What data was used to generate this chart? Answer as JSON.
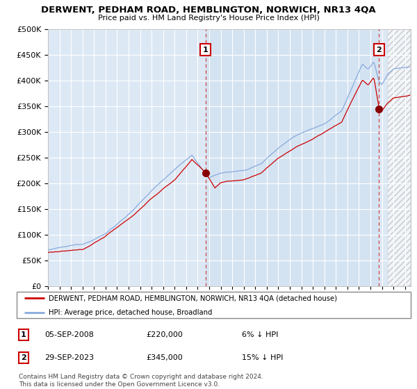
{
  "title": "DERWENT, PEDHAM ROAD, HEMBLINGTON, NORWICH, NR13 4QA",
  "subtitle": "Price paid vs. HM Land Registry's House Price Index (HPI)",
  "ylim": [
    0,
    500000
  ],
  "yticks": [
    0,
    50000,
    100000,
    150000,
    200000,
    250000,
    300000,
    350000,
    400000,
    450000,
    500000
  ],
  "xlim_start": 1995.0,
  "xlim_end": 2026.5,
  "sale1_date": 2008.68,
  "sale1_price": 220000,
  "sale1_label": "1",
  "sale2_date": 2023.75,
  "sale2_price": 345000,
  "sale2_label": "2",
  "line_color_property": "#cc0000",
  "line_color_hpi": "#88aadd",
  "dot_color": "#880000",
  "vline_color": "#cc4444",
  "plot_bg_color": "#dde8f5",
  "shade_color": "#ccddf0",
  "grid_color": "#ffffff",
  "legend_label_property": "DERWENT, PEDHAM ROAD, HEMBLINGTON, NORWICH, NR13 4QA (detached house)",
  "legend_label_hpi": "HPI: Average price, detached house, Broadland",
  "note1_label": "1",
  "note1_date": "05-SEP-2008",
  "note1_price": "£220,000",
  "note1_pct": "6% ↓ HPI",
  "note2_label": "2",
  "note2_date": "29-SEP-2023",
  "note2_price": "£345,000",
  "note2_pct": "15% ↓ HPI",
  "footer": "Contains HM Land Registry data © Crown copyright and database right 2024.\nThis data is licensed under the Open Government Licence v3.0."
}
